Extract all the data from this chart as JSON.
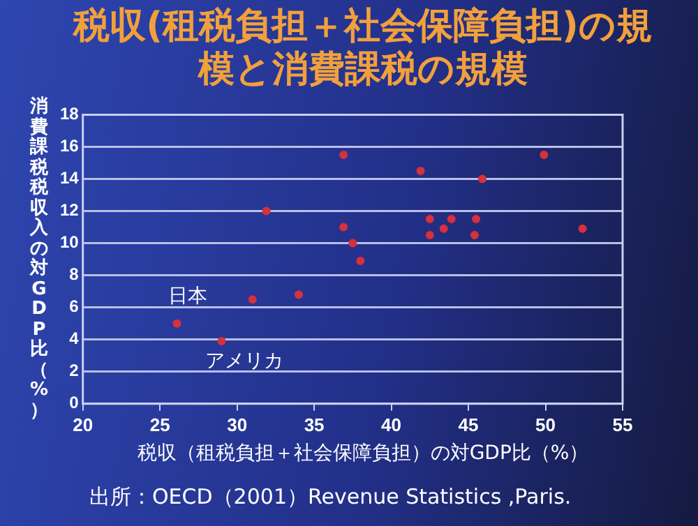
{
  "chart_data": {
    "type": "scatter",
    "title": "税収(租税負担＋社会保障負担)の規模と消費課税の規模",
    "xlabel": "税収（租税負担＋社会保障負担）の対GDP比（%）",
    "ylabel": "消費課税税収入の対GDP比（%）",
    "x": [
      36.9,
      31.9,
      36.9,
      37.5,
      38.0,
      26.1,
      29.0,
      31.0,
      34.0,
      41.9,
      49.9,
      45.9,
      42.5,
      43.9,
      45.5,
      43.4,
      42.5,
      45.4,
      52.4
    ],
    "series": [
      {
        "color": "#d8303c",
        "values": [
          15.5,
          12.0,
          11.0,
          10.0,
          8.9,
          5.0,
          3.9,
          6.5,
          6.8,
          14.5,
          15.5,
          14.0,
          11.5,
          11.5,
          11.5,
          10.9,
          10.5,
          10.5,
          10.9
        ]
      }
    ],
    "xlim": [
      20,
      55
    ],
    "xticks": [
      20,
      25,
      30,
      35,
      40,
      45,
      50,
      55
    ],
    "ylim": [
      0,
      18
    ],
    "yticks": [
      0,
      2,
      4,
      6,
      8,
      10,
      12,
      14,
      16,
      18
    ],
    "grid": "y",
    "legend": false,
    "marker": "circle",
    "annotations": [
      {
        "text": "日本",
        "x": 26.1,
        "y": 5.0
      },
      {
        "text": "アメリカ",
        "x": 29.0,
        "y": 3.9
      },
      "出所：OECD（2001）Revenue Statistics ,Paris."
    ]
  }
}
